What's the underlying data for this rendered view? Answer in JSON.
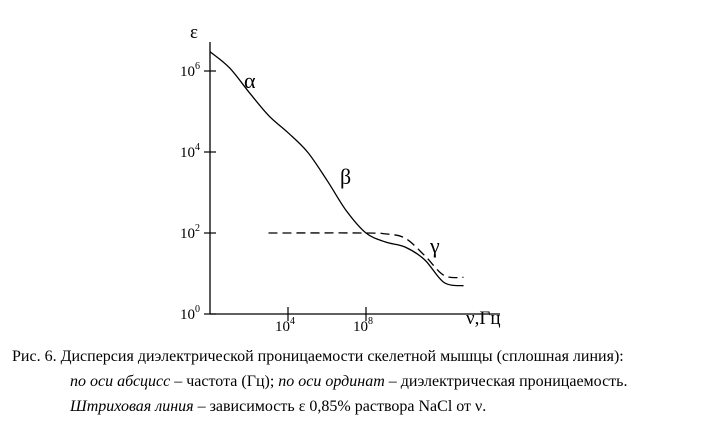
{
  "chart_data": {
    "type": "line",
    "ylabel": "ε",
    "xlabel": "ν,Гц",
    "x_scale": "log",
    "y_scale": "log",
    "yticks": [
      {
        "base": "10",
        "exp": "0",
        "value": 1
      },
      {
        "base": "10",
        "exp": "2",
        "value": 100
      },
      {
        "base": "10",
        "exp": "4",
        "value": 10000
      },
      {
        "base": "10",
        "exp": "6",
        "value": 1000000
      }
    ],
    "xticks": [
      {
        "base": "10",
        "exp": "4",
        "value": 10000
      },
      {
        "base": "10",
        "exp": "8",
        "value": 100000000
      }
    ],
    "xlim": [
      1,
      1000000000000000.0
    ],
    "ylim": [
      1,
      10000000.0
    ],
    "series": [
      {
        "style": "solid",
        "points": [
          [
            1,
            3000000.0
          ],
          [
            10,
            1200000.0
          ],
          [
            100,
            300000.0
          ],
          [
            1000,
            80000.0
          ],
          [
            10000,
            30000.0
          ],
          [
            100000,
            10000.0
          ],
          [
            1000000,
            2000.0
          ],
          [
            10000000,
            350
          ],
          [
            100000000,
            100
          ],
          [
            1000000000.0,
            60
          ],
          [
            10000000000.0,
            45
          ],
          [
            100000000000.0,
            22
          ],
          [
            1000000000000.0,
            6
          ],
          [
            10000000000000.0,
            5
          ]
        ]
      },
      {
        "style": "dashed",
        "points": [
          [
            1000,
            100
          ],
          [
            100000000.0,
            100
          ],
          [
            1000000000.0,
            95
          ],
          [
            10000000000.0,
            75
          ],
          [
            100000000000.0,
            28
          ],
          [
            1000000000000.0,
            9
          ],
          [
            10000000000000.0,
            8
          ]
        ]
      }
    ],
    "annotations": [
      "α",
      "β",
      "γ"
    ]
  },
  "caption": {
    "line1": "Рис. 6. Дисперсия диэлектрической проницаемости скелетной мышцы (сплошная линия):",
    "line2_italic_a": "по оси абсцисс",
    "line2_a": " – частота (Гц); ",
    "line2_italic_b": "по оси ординат",
    "line2_b": " – диэлектрическая проницаемость.",
    "line3_italic": "Штриховая линия",
    "line3": " – зависимость ε 0,85% раствора NaCl от ν."
  }
}
